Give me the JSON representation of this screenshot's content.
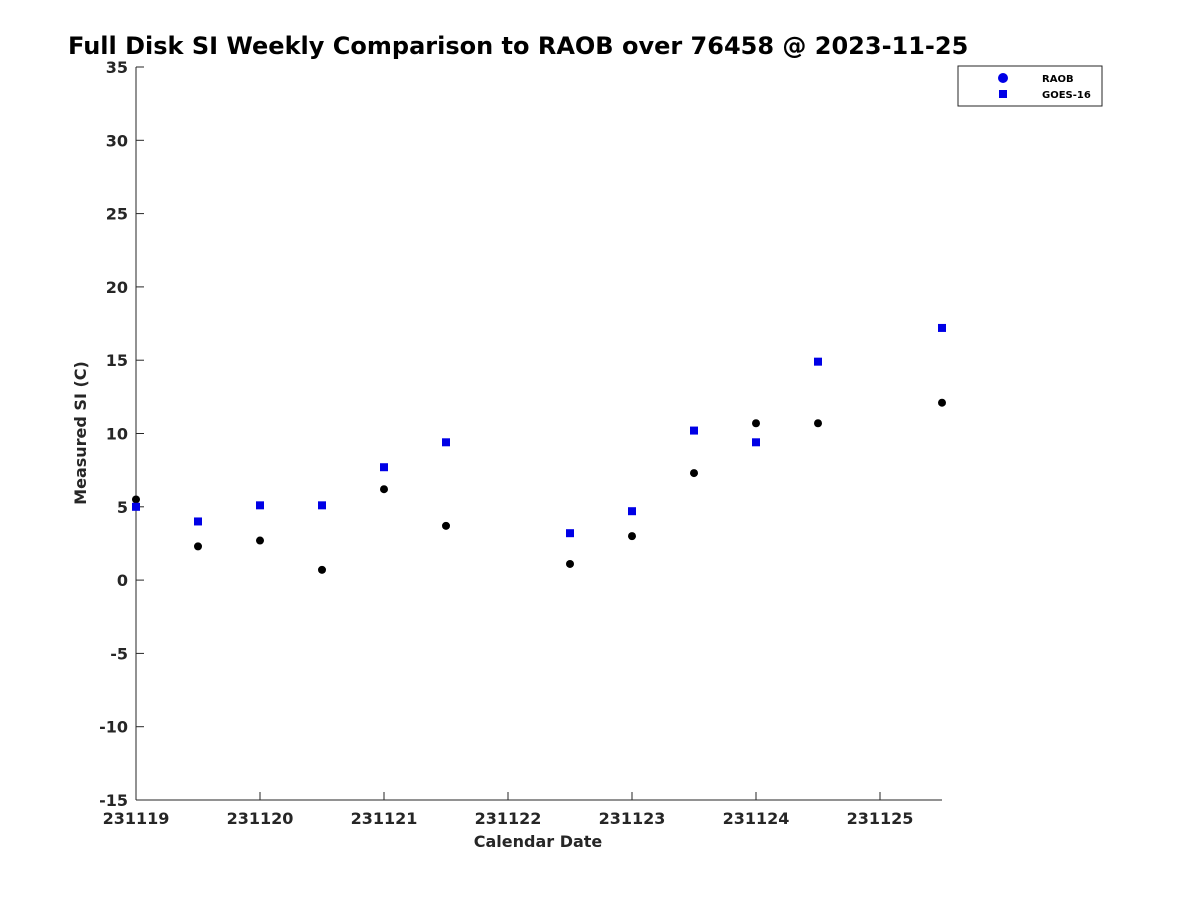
{
  "chart_data": {
    "type": "scatter",
    "title": "Full Disk SI Weekly Comparison to RAOB over 76458 @ 2023-11-25",
    "xlabel": "Calendar Date",
    "ylabel": "Measured SI (C)",
    "x_tick_labels": [
      "231119",
      "231120",
      "231121",
      "231122",
      "231123",
      "231124",
      "231125"
    ],
    "x_tick_values": [
      0,
      1,
      2,
      3,
      4,
      5,
      6
    ],
    "xlim": [
      0,
      6.5
    ],
    "ylim": [
      -15,
      35
    ],
    "y_ticks": [
      -15,
      -10,
      -5,
      0,
      5,
      10,
      15,
      20,
      25,
      30,
      35
    ],
    "grid": false,
    "legend_position": "top-right",
    "series": [
      {
        "name": "RAOB",
        "marker": "circle",
        "color": "#000000",
        "legend_color": "#0000e6",
        "points": [
          {
            "x": 0.0,
            "y": 5.5
          },
          {
            "x": 0.5,
            "y": 2.3
          },
          {
            "x": 1.0,
            "y": 2.7
          },
          {
            "x": 1.5,
            "y": 0.7
          },
          {
            "x": 2.0,
            "y": 6.2
          },
          {
            "x": 2.5,
            "y": 3.7
          },
          {
            "x": 3.5,
            "y": 1.1
          },
          {
            "x": 4.0,
            "y": 3.0
          },
          {
            "x": 4.5,
            "y": 7.3
          },
          {
            "x": 5.0,
            "y": 10.7
          },
          {
            "x": 5.5,
            "y": 10.7
          },
          {
            "x": 6.5,
            "y": 12.1
          }
        ]
      },
      {
        "name": "GOES-16",
        "marker": "square",
        "color": "#0000e6",
        "legend_color": "#0000e6",
        "points": [
          {
            "x": 0.0,
            "y": 5.0
          },
          {
            "x": 0.5,
            "y": 4.0
          },
          {
            "x": 1.0,
            "y": 5.1
          },
          {
            "x": 1.5,
            "y": 5.1
          },
          {
            "x": 2.0,
            "y": 7.7
          },
          {
            "x": 2.5,
            "y": 9.4
          },
          {
            "x": 3.5,
            "y": 3.2
          },
          {
            "x": 4.0,
            "y": 4.7
          },
          {
            "x": 4.5,
            "y": 10.2
          },
          {
            "x": 5.0,
            "y": 9.4
          },
          {
            "x": 5.5,
            "y": 14.9
          },
          {
            "x": 6.5,
            "y": 17.2
          }
        ]
      }
    ]
  }
}
